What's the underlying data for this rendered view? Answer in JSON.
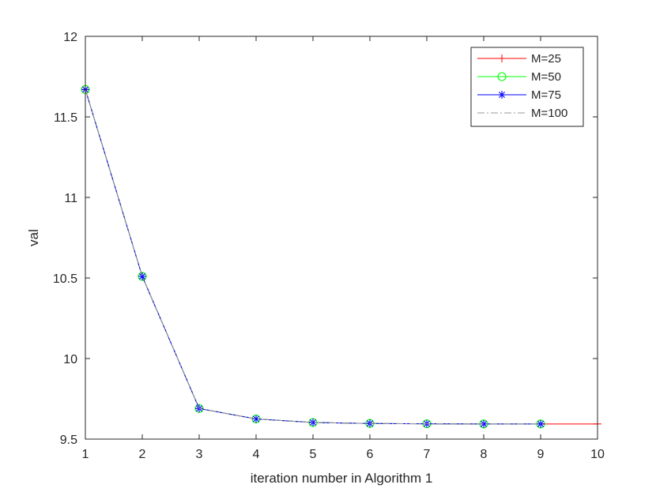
{
  "chart_data": {
    "type": "line",
    "title": "",
    "xlabel": "iteration number in Algorithm 1",
    "ylabel": "val",
    "xlim": [
      1,
      10
    ],
    "ylim": [
      9.5,
      12
    ],
    "xticks": [
      1,
      2,
      3,
      4,
      5,
      6,
      7,
      8,
      9,
      10
    ],
    "xtick_labels": [
      "1",
      "2",
      "3",
      "4",
      "5",
      "6",
      "7",
      "8",
      "9",
      "10"
    ],
    "yticks": [
      9.5,
      10,
      10.5,
      11,
      11.5,
      12
    ],
    "ytick_labels": [
      "9.5",
      "10",
      "10.5",
      "11",
      "11.5",
      "12"
    ],
    "grid": false,
    "legend_position": "top-right",
    "series": [
      {
        "name": "M=25",
        "color": "#ff0000",
        "marker": "plus",
        "line_style": "solid",
        "x": [
          1,
          2,
          3,
          4,
          5,
          6,
          7,
          8,
          9,
          10
        ],
        "y": [
          11.67,
          10.51,
          9.69,
          9.625,
          9.603,
          9.597,
          9.595,
          9.594,
          9.594,
          9.594
        ]
      },
      {
        "name": "M=50",
        "color": "#00ff00",
        "marker": "circle",
        "line_style": "solid",
        "x": [
          1,
          2,
          3,
          4,
          5,
          6,
          7,
          8,
          9
        ],
        "y": [
          11.67,
          10.51,
          9.69,
          9.625,
          9.603,
          9.597,
          9.595,
          9.594,
          9.594
        ]
      },
      {
        "name": "M=75",
        "color": "#0000ff",
        "marker": "asterisk",
        "line_style": "solid",
        "x": [
          1,
          2,
          3,
          4,
          5,
          6,
          7,
          8,
          9
        ],
        "y": [
          11.67,
          10.51,
          9.69,
          9.625,
          9.603,
          9.597,
          9.595,
          9.594,
          9.594
        ]
      },
      {
        "name": "M=100",
        "color": "#999999",
        "marker": "none",
        "line_style": "dash-dot",
        "x": [
          1,
          2,
          3,
          4,
          5,
          6,
          7,
          8,
          9
        ],
        "y": [
          11.67,
          10.51,
          9.69,
          9.625,
          9.603,
          9.597,
          9.595,
          9.594,
          9.594
        ]
      }
    ]
  }
}
